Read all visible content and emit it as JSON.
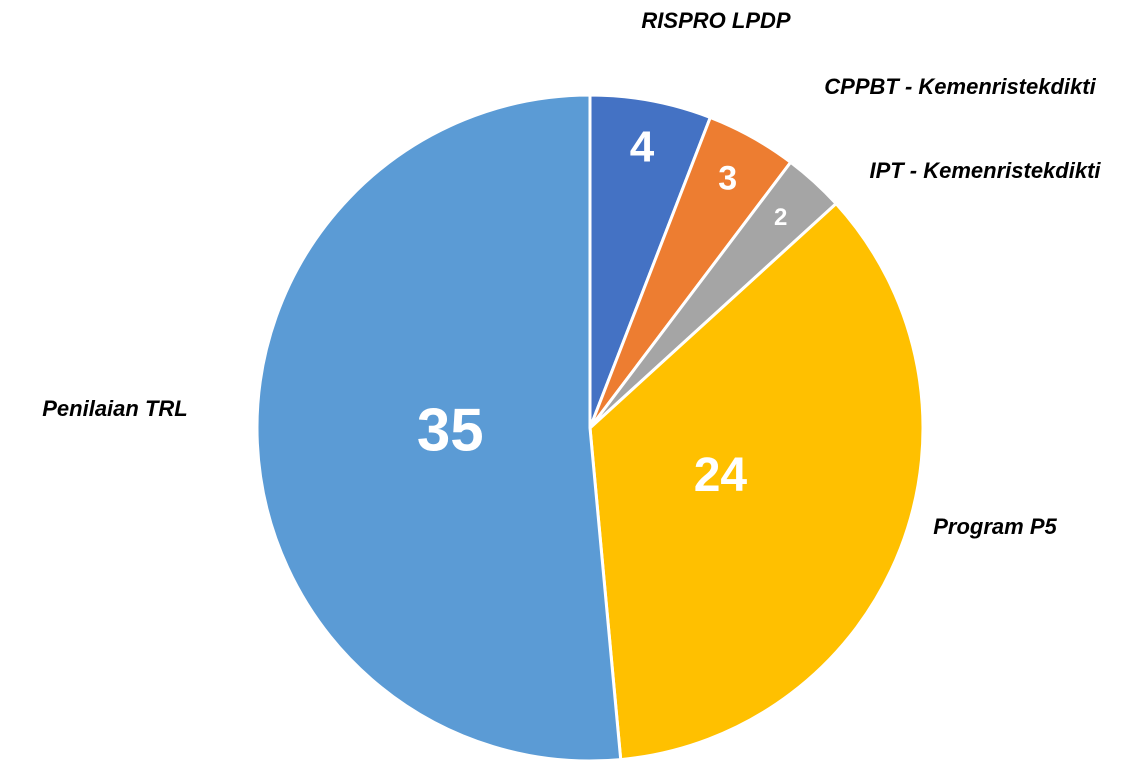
{
  "chart_data": {
    "type": "pie",
    "categories": [
      "RISPRO LPDP",
      "CPPBT - Kemenristekdikti",
      "IPT - Kemenristekdikti",
      "Program P5",
      "Penilaian TRL"
    ],
    "values": [
      4,
      3,
      2,
      24,
      35
    ],
    "colors": [
      "#4472c4",
      "#ed7d31",
      "#a5a5a5",
      "#ffc000",
      "#5b9bd5"
    ]
  }
}
